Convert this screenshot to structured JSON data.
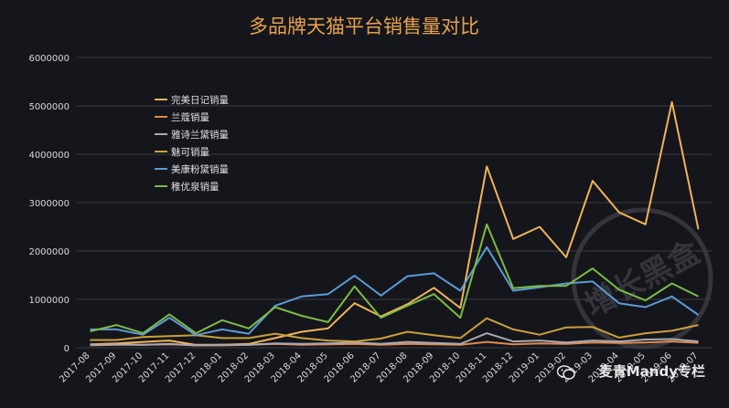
{
  "watermark": {
    "text": "麦青Mandy专栏",
    "stamp_text": "增长黑盒"
  },
  "colors": {
    "background": "#15161c",
    "title": "#e7a14f",
    "grid": "#3a3b42",
    "axis_text": "#d9d9d9",
    "legend_text": "#e0e0e0"
  },
  "chart_data": {
    "type": "line",
    "title": "多品牌天猫平台销售量对比",
    "xlabel": "",
    "ylabel": "",
    "ylim": [
      0,
      6000000
    ],
    "yticks": [
      "0",
      "1000000",
      "2000000",
      "3000000",
      "4000000",
      "5000000",
      "6000000"
    ],
    "grid": true,
    "legend_position": "top-left",
    "categories": [
      "2017-08",
      "2017-09",
      "2017-10",
      "2017-11",
      "2017-12",
      "2018-01",
      "2018-02",
      "2018-03",
      "2018-04",
      "2018-05",
      "2018-06",
      "2018-07",
      "2018-08",
      "2018-09",
      "2018-10",
      "2018-11",
      "2018-12",
      "2019-01",
      "2019-02",
      "2019-03",
      "2019-04",
      "2019-05",
      "2019-06",
      "2019-07"
    ],
    "tick_labels": [
      "2017-08",
      "2017-09",
      "2017-10",
      "2017-11",
      "2017-12",
      "2018-01",
      "2018-02",
      "2018-03",
      "2018-04",
      "2018-05",
      "2018-06",
      "2018-07",
      "2018-08",
      "2018-09",
      "2018-10",
      "2018-11",
      "2018-12",
      "2019-01",
      "2019-02",
      "2019-03",
      "2019-04",
      "2019-05",
      "2019-06",
      "2019-07"
    ],
    "series": [
      {
        "name": "完美日记销量",
        "color": "#f0b45a",
        "values": [
          70000,
          90000,
          120000,
          150000,
          60000,
          60000,
          80000,
          200000,
          330000,
          400000,
          920000,
          650000,
          900000,
          1240000,
          820000,
          3750000,
          2250000,
          2500000,
          1870000,
          3450000,
          2800000,
          2550000,
          5080000,
          2450000
        ]
      },
      {
        "name": "兰蔻销量",
        "color": "#e08a4e",
        "values": [
          50000,
          60000,
          60000,
          70000,
          50000,
          50000,
          60000,
          80000,
          60000,
          70000,
          80000,
          60000,
          80000,
          70000,
          60000,
          120000,
          70000,
          90000,
          80000,
          110000,
          100000,
          110000,
          130000,
          100000
        ]
      },
      {
        "name": "雅诗兰黛销量",
        "color": "#a9a9b3",
        "values": [
          60000,
          70000,
          60000,
          80000,
          50000,
          60000,
          60000,
          90000,
          80000,
          90000,
          110000,
          80000,
          120000,
          100000,
          80000,
          300000,
          130000,
          150000,
          110000,
          150000,
          130000,
          170000,
          180000,
          130000
        ]
      },
      {
        "name": "魅可销量",
        "color": "#c9a13a",
        "values": [
          160000,
          160000,
          220000,
          240000,
          260000,
          200000,
          200000,
          290000,
          200000,
          150000,
          130000,
          190000,
          330000,
          260000,
          200000,
          610000,
          380000,
          270000,
          420000,
          430000,
          210000,
          300000,
          350000,
          470000
        ]
      },
      {
        "name": "美康粉黛销量",
        "color": "#5b9bd5",
        "values": [
          380000,
          380000,
          270000,
          620000,
          260000,
          380000,
          290000,
          870000,
          1060000,
          1110000,
          1490000,
          1080000,
          1480000,
          1540000,
          1180000,
          2080000,
          1180000,
          1250000,
          1330000,
          1370000,
          920000,
          840000,
          1060000,
          680000
        ]
      },
      {
        "name": "稚优泉销量",
        "color": "#7dbb46",
        "values": [
          340000,
          470000,
          300000,
          690000,
          300000,
          570000,
          400000,
          840000,
          660000,
          530000,
          1270000,
          620000,
          870000,
          1110000,
          620000,
          2550000,
          1230000,
          1280000,
          1280000,
          1640000,
          1200000,
          980000,
          1330000,
          1060000
        ]
      }
    ]
  }
}
